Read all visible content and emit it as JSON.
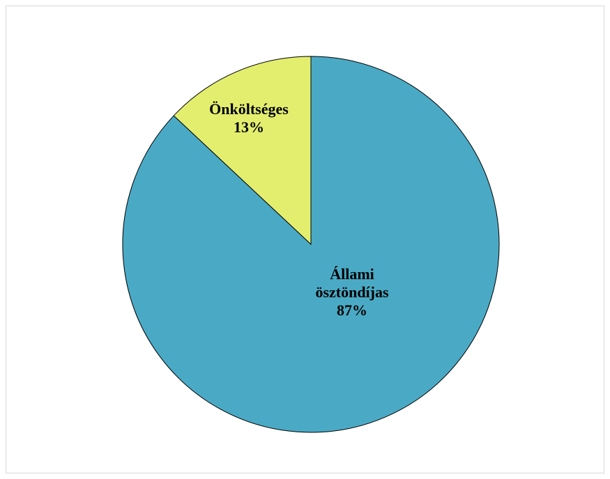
{
  "chart_data": {
    "type": "pie",
    "title": "",
    "legend": "none",
    "start": "top",
    "direction": "counterclockwise-from-top",
    "slices": [
      {
        "label": "Önköltséges",
        "pct_label": "13%",
        "value": 13,
        "color": "#e3ee6f"
      },
      {
        "label": "Állami ösztöndíjas",
        "pct_label": "87%",
        "value": 87,
        "color": "#4aaac5"
      }
    ]
  }
}
